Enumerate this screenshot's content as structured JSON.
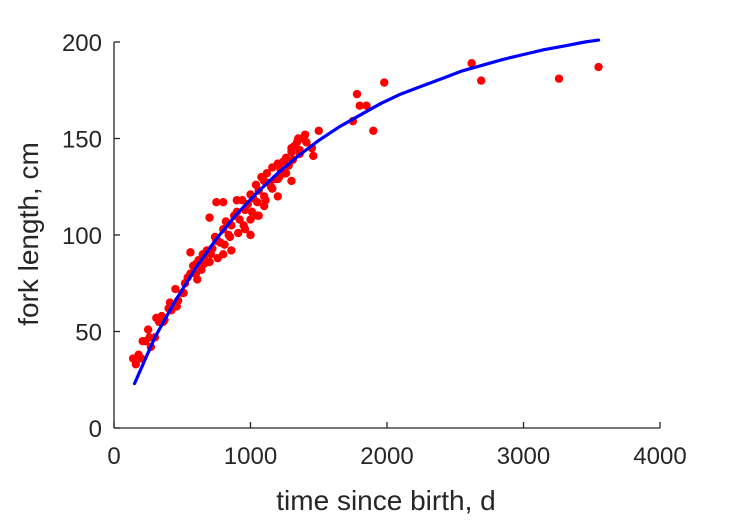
{
  "chart_data": {
    "type": "scatter",
    "title": "",
    "xlabel": "time since birth, d",
    "ylabel": "fork length, cm",
    "xlim": [
      0,
      4000
    ],
    "ylim": [
      0,
      200
    ],
    "xticks": [
      0,
      1000,
      2000,
      3000,
      4000
    ],
    "yticks": [
      0,
      50,
      100,
      150,
      200
    ],
    "xtick_labels": [
      "0",
      "1000",
      "2000",
      "3000",
      "4000"
    ],
    "ytick_labels": [
      "0",
      "50",
      "100",
      "150",
      "200"
    ],
    "grid": false,
    "legend": "none",
    "colors": {
      "points": "#ff0000",
      "fit": "#0000ff",
      "axes": "#262626"
    },
    "series": [
      {
        "kind": "points",
        "x": [
          140,
          160,
          180,
          200,
          230,
          250,
          270,
          300,
          330,
          350,
          370,
          400,
          420,
          450,
          470,
          500,
          520,
          540,
          560,
          580,
          600,
          620,
          640,
          660,
          680,
          700,
          720,
          740,
          760,
          780,
          800,
          820,
          840,
          860,
          880,
          900,
          920,
          940,
          960,
          980,
          1000,
          1020,
          1040,
          1060,
          1080,
          1100,
          1120,
          1140,
          1160,
          1180,
          1200,
          1220,
          1240,
          1260,
          1280,
          1300,
          1320,
          1340,
          1360,
          1380,
          1400,
          1450,
          1500,
          600,
          650,
          700,
          750,
          800,
          850,
          900,
          950,
          1000,
          1050,
          1100,
          1150,
          1200,
          1250,
          1300,
          1350,
          750,
          800,
          1000,
          1050,
          1100,
          1200,
          1300,
          1750,
          1780,
          1800,
          1850,
          1900,
          1980,
          2620,
          2690,
          3260,
          3550,
          210,
          260,
          310,
          360,
          410,
          460,
          510,
          560,
          610,
          660,
          710,
          760,
          810,
          860,
          910,
          960,
          1010,
          1060,
          1110,
          1160,
          1210,
          1260,
          1310,
          1360,
          1410,
          1460
        ],
        "y": [
          36,
          33,
          38,
          36,
          45,
          51,
          42,
          47,
          55,
          58,
          56,
          62,
          61,
          72,
          66,
          70,
          75,
          78,
          91,
          84,
          80,
          87,
          82,
          89,
          92,
          86,
          93,
          99,
          97,
          96,
          103,
          107,
          100,
          105,
          110,
          112,
          108,
          118,
          113,
          116,
          121,
          119,
          126,
          123,
          130,
          128,
          132,
          127,
          135,
          129,
          137,
          134,
          138,
          140,
          136,
          143,
          146,
          148,
          144,
          150,
          152,
          145,
          154,
          85,
          90,
          109,
          97,
          117,
          99,
          118,
          105,
          108,
          117,
          120,
          125,
          129,
          132,
          145,
          150,
          117,
          90,
          100,
          110,
          115,
          120,
          128,
          159,
          173,
          167,
          167,
          154,
          179,
          189,
          180,
          181,
          187,
          45,
          47,
          57,
          55,
          65,
          63,
          70,
          80,
          77,
          85,
          90,
          88,
          95,
          92,
          101,
          103,
          112,
          110,
          118,
          124,
          130,
          132,
          139,
          142,
          148,
          141
        ]
      },
      {
        "kind": "line",
        "x": [
          150,
          300,
          450,
          600,
          750,
          900,
          1050,
          1200,
          1350,
          1500,
          1650,
          1800,
          1950,
          2100,
          2250,
          2400,
          2550,
          2700,
          2850,
          3000,
          3150,
          3300,
          3450,
          3550
        ],
        "y": [
          23,
          47,
          66,
          83,
          98,
          111,
          122,
          132,
          141,
          149,
          156,
          162,
          168,
          173,
          177,
          181,
          185,
          188,
          191,
          193.5,
          196,
          198,
          200,
          201
        ]
      }
    ]
  }
}
